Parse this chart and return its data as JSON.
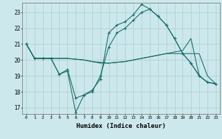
{
  "xlabel": "Humidex (Indice chaleur)",
  "background_color": "#cce8ec",
  "grid_color": "#aacccc",
  "line_color": "#1a6b6b",
  "x_ticks": [
    0,
    1,
    2,
    3,
    4,
    5,
    6,
    7,
    8,
    9,
    10,
    11,
    12,
    13,
    14,
    15,
    16,
    17,
    18,
    19,
    20,
    21,
    22,
    23
  ],
  "y_ticks": [
    17,
    18,
    19,
    20,
    21,
    22,
    23
  ],
  "xlim": [
    -0.5,
    23.5
  ],
  "ylim": [
    16.6,
    23.6
  ],
  "line1_x": [
    0,
    1,
    2,
    3,
    4,
    5,
    6,
    7,
    8,
    9,
    10,
    11,
    12,
    13,
    14,
    15,
    16,
    17,
    18,
    19,
    20,
    21,
    22,
    23
  ],
  "line1_y": [
    21.0,
    20.1,
    20.1,
    20.1,
    19.1,
    19.4,
    17.6,
    17.8,
    18.1,
    18.8,
    21.7,
    22.2,
    22.4,
    22.85,
    23.5,
    23.2,
    22.75,
    22.2,
    21.35,
    20.4,
    19.8,
    19.0,
    18.6,
    18.5
  ],
  "line2_x": [
    0,
    1,
    2,
    3,
    4,
    5,
    6,
    7,
    8,
    9,
    10,
    11,
    12,
    13,
    14,
    15,
    16,
    17,
    18,
    19,
    20,
    21,
    22,
    23
  ],
  "line2_y": [
    21.0,
    20.1,
    20.1,
    20.1,
    19.1,
    19.3,
    16.7,
    17.8,
    18.0,
    19.0,
    20.8,
    21.7,
    22.0,
    22.5,
    23.0,
    23.2,
    22.75,
    22.2,
    21.35,
    20.4,
    19.8,
    19.0,
    18.6,
    18.5
  ],
  "line3_x": [
    0,
    1,
    2,
    3,
    4,
    5,
    6,
    7,
    8,
    9,
    10,
    11,
    12,
    13,
    14,
    15,
    16,
    17,
    18,
    19,
    20,
    21,
    22,
    23
  ],
  "line3_y": [
    21.0,
    20.1,
    20.1,
    20.1,
    20.1,
    20.1,
    20.05,
    20.0,
    19.9,
    19.8,
    19.8,
    19.85,
    19.9,
    20.0,
    20.1,
    20.2,
    20.3,
    20.4,
    20.4,
    20.4,
    20.4,
    20.4,
    19.0,
    18.5
  ],
  "line4_x": [
    0,
    1,
    2,
    3,
    4,
    5,
    6,
    7,
    8,
    9,
    10,
    11,
    12,
    13,
    14,
    15,
    16,
    17,
    18,
    19,
    20,
    21,
    22,
    23
  ],
  "line4_y": [
    21.0,
    20.1,
    20.1,
    20.1,
    20.1,
    20.1,
    20.05,
    20.0,
    19.9,
    19.85,
    19.8,
    19.85,
    19.9,
    20.0,
    20.1,
    20.2,
    20.3,
    20.4,
    20.5,
    20.6,
    21.35,
    19.0,
    18.6,
    18.5
  ]
}
